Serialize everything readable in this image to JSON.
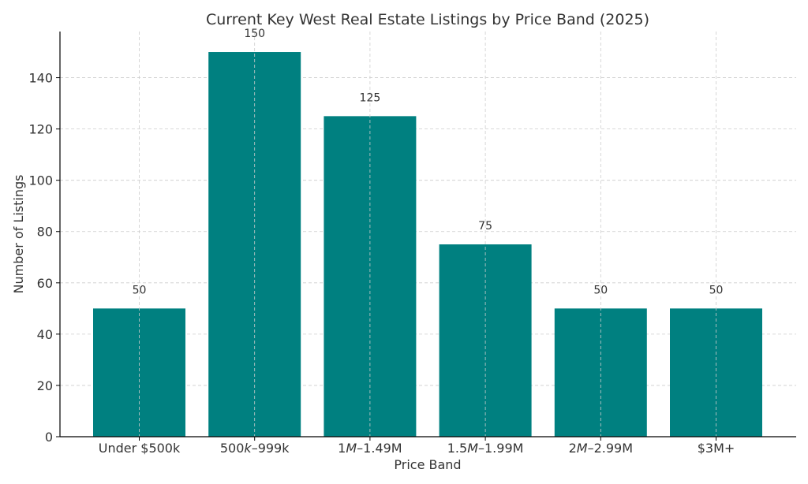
{
  "chart_data": {
    "type": "bar",
    "title": "Current Key West Real Estate Listings by Price Band (2025)",
    "xlabel": "Price Band",
    "ylabel": "Number of Listings",
    "categories": [
      "Under $500k",
      "500k–999k",
      "1M–1.49M",
      "1.5M–1.99M",
      "2M–2.99M",
      "$3M+"
    ],
    "category_display": [
      [
        {
          "t": "Under $500k",
          "i": false
        }
      ],
      [
        {
          "t": "500",
          "i": false
        },
        {
          "t": "k",
          "i": true
        },
        {
          "t": "–999k",
          "i": false
        }
      ],
      [
        {
          "t": "1",
          "i": false
        },
        {
          "t": "M",
          "i": true
        },
        {
          "t": "–1.49M",
          "i": false
        }
      ],
      [
        {
          "t": "1.5",
          "i": false
        },
        {
          "t": "M",
          "i": true
        },
        {
          "t": "–1.99M",
          "i": false
        }
      ],
      [
        {
          "t": "2",
          "i": false
        },
        {
          "t": "M",
          "i": true
        },
        {
          "t": "–2.99M",
          "i": false
        }
      ],
      [
        {
          "t": "$3M+",
          "i": false
        }
      ]
    ],
    "values": [
      50,
      150,
      125,
      75,
      50,
      50
    ],
    "data_labels": [
      "50",
      "150",
      "125",
      "75",
      "50",
      "50"
    ],
    "ylim": [
      0,
      158
    ],
    "yticks": [
      0,
      20,
      40,
      60,
      80,
      100,
      120,
      140
    ],
    "grid": true,
    "bar_color": "#008080",
    "grid_color": "#cccccc"
  }
}
